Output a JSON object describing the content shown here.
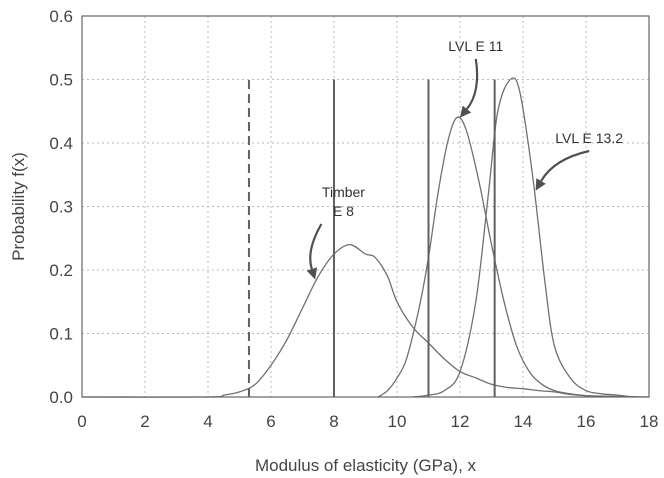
{
  "chart_data": {
    "type": "line",
    "xlabel": "Modulus of elasticity (GPa), x",
    "ylabel": "Probability f(x)",
    "xlim": [
      0,
      18
    ],
    "ylim": [
      0,
      0.6
    ],
    "x_ticks": [
      0,
      2,
      4,
      6,
      8,
      10,
      12,
      14,
      16,
      18
    ],
    "y_ticks": [
      0.0,
      0.1,
      0.2,
      0.3,
      0.4,
      0.5,
      0.6
    ],
    "x_tick_labels": [
      "0",
      "2",
      "4",
      "6",
      "8",
      "10",
      "12",
      "14",
      "16",
      "18"
    ],
    "y_tick_labels": [
      "0.0",
      "0.1",
      "0.2",
      "0.3",
      "0.4",
      "0.5",
      "0.6"
    ],
    "grid": true,
    "series": [
      {
        "label": "Timber E 8",
        "points": [
          [
            0,
            0
          ],
          [
            4.0,
            0
          ],
          [
            4.5,
            0.003
          ],
          [
            5.0,
            0.008
          ],
          [
            5.5,
            0.02
          ],
          [
            6.0,
            0.05
          ],
          [
            6.5,
            0.09
          ],
          [
            7.0,
            0.14
          ],
          [
            7.5,
            0.19
          ],
          [
            8.0,
            0.225
          ],
          [
            8.5,
            0.24
          ],
          [
            9.0,
            0.225
          ],
          [
            9.3,
            0.22
          ],
          [
            9.7,
            0.19
          ],
          [
            10.0,
            0.15
          ],
          [
            10.5,
            0.11
          ],
          [
            11.0,
            0.085
          ],
          [
            11.5,
            0.06
          ],
          [
            12.0,
            0.04
          ],
          [
            12.5,
            0.03
          ],
          [
            13.0,
            0.02
          ],
          [
            13.5,
            0.015
          ],
          [
            14.0,
            0.013
          ],
          [
            14.5,
            0.01
          ],
          [
            15.0,
            0.008
          ],
          [
            15.5,
            0.004
          ],
          [
            16.0,
            0.002
          ],
          [
            17.0,
            0.001
          ],
          [
            18.0,
            0
          ]
        ]
      },
      {
        "label": "LVL E 11",
        "points": [
          [
            9.4,
            0
          ],
          [
            9.7,
            0.01
          ],
          [
            10.0,
            0.03
          ],
          [
            10.3,
            0.06
          ],
          [
            10.7,
            0.14
          ],
          [
            11.0,
            0.22
          ],
          [
            11.3,
            0.32
          ],
          [
            11.6,
            0.4
          ],
          [
            11.9,
            0.44
          ],
          [
            12.2,
            0.42
          ],
          [
            12.6,
            0.34
          ],
          [
            13.0,
            0.24
          ],
          [
            13.4,
            0.15
          ],
          [
            13.8,
            0.08
          ],
          [
            14.2,
            0.04
          ],
          [
            14.6,
            0.02
          ],
          [
            15.0,
            0.01
          ],
          [
            15.5,
            0.005
          ],
          [
            16.0,
            0.002
          ],
          [
            16.5,
            0
          ]
        ]
      },
      {
        "label": "LVL E 13.2",
        "points": [
          [
            10.5,
            0
          ],
          [
            11.0,
            0.003
          ],
          [
            11.5,
            0.01
          ],
          [
            12.0,
            0.04
          ],
          [
            12.5,
            0.15
          ],
          [
            12.9,
            0.32
          ],
          [
            13.2,
            0.45
          ],
          [
            13.6,
            0.5
          ],
          [
            13.9,
            0.48
          ],
          [
            14.3,
            0.35
          ],
          [
            14.7,
            0.18
          ],
          [
            15.0,
            0.08
          ],
          [
            15.5,
            0.03
          ],
          [
            16.0,
            0.01
          ],
          [
            16.5,
            0.005
          ],
          [
            17.0,
            0.003
          ],
          [
            17.5,
            0
          ]
        ]
      }
    ],
    "vertical_lines": [
      {
        "x": 5.3,
        "y": 0.5,
        "style": "dashed"
      },
      {
        "x": 8.0,
        "y": 0.5,
        "style": "solid"
      },
      {
        "x": 11.0,
        "y": 0.5,
        "style": "solid"
      },
      {
        "x": 13.1,
        "y": 0.5,
        "style": "solid"
      }
    ],
    "annotations": [
      {
        "text_lines": [
          "Timber",
          "E 8"
        ],
        "text_x": 8.3,
        "text_y": 0.315,
        "arrow_to": [
          7.4,
          0.185
        ]
      },
      {
        "text_lines": [
          "LVL E 11"
        ],
        "text_x": 12.5,
        "text_y": 0.545,
        "arrow_to": [
          12.0,
          0.44
        ]
      },
      {
        "text_lines": [
          "LVL E 13.2"
        ],
        "text_x": 16.1,
        "text_y": 0.4,
        "arrow_to": [
          14.4,
          0.325
        ]
      }
    ]
  }
}
